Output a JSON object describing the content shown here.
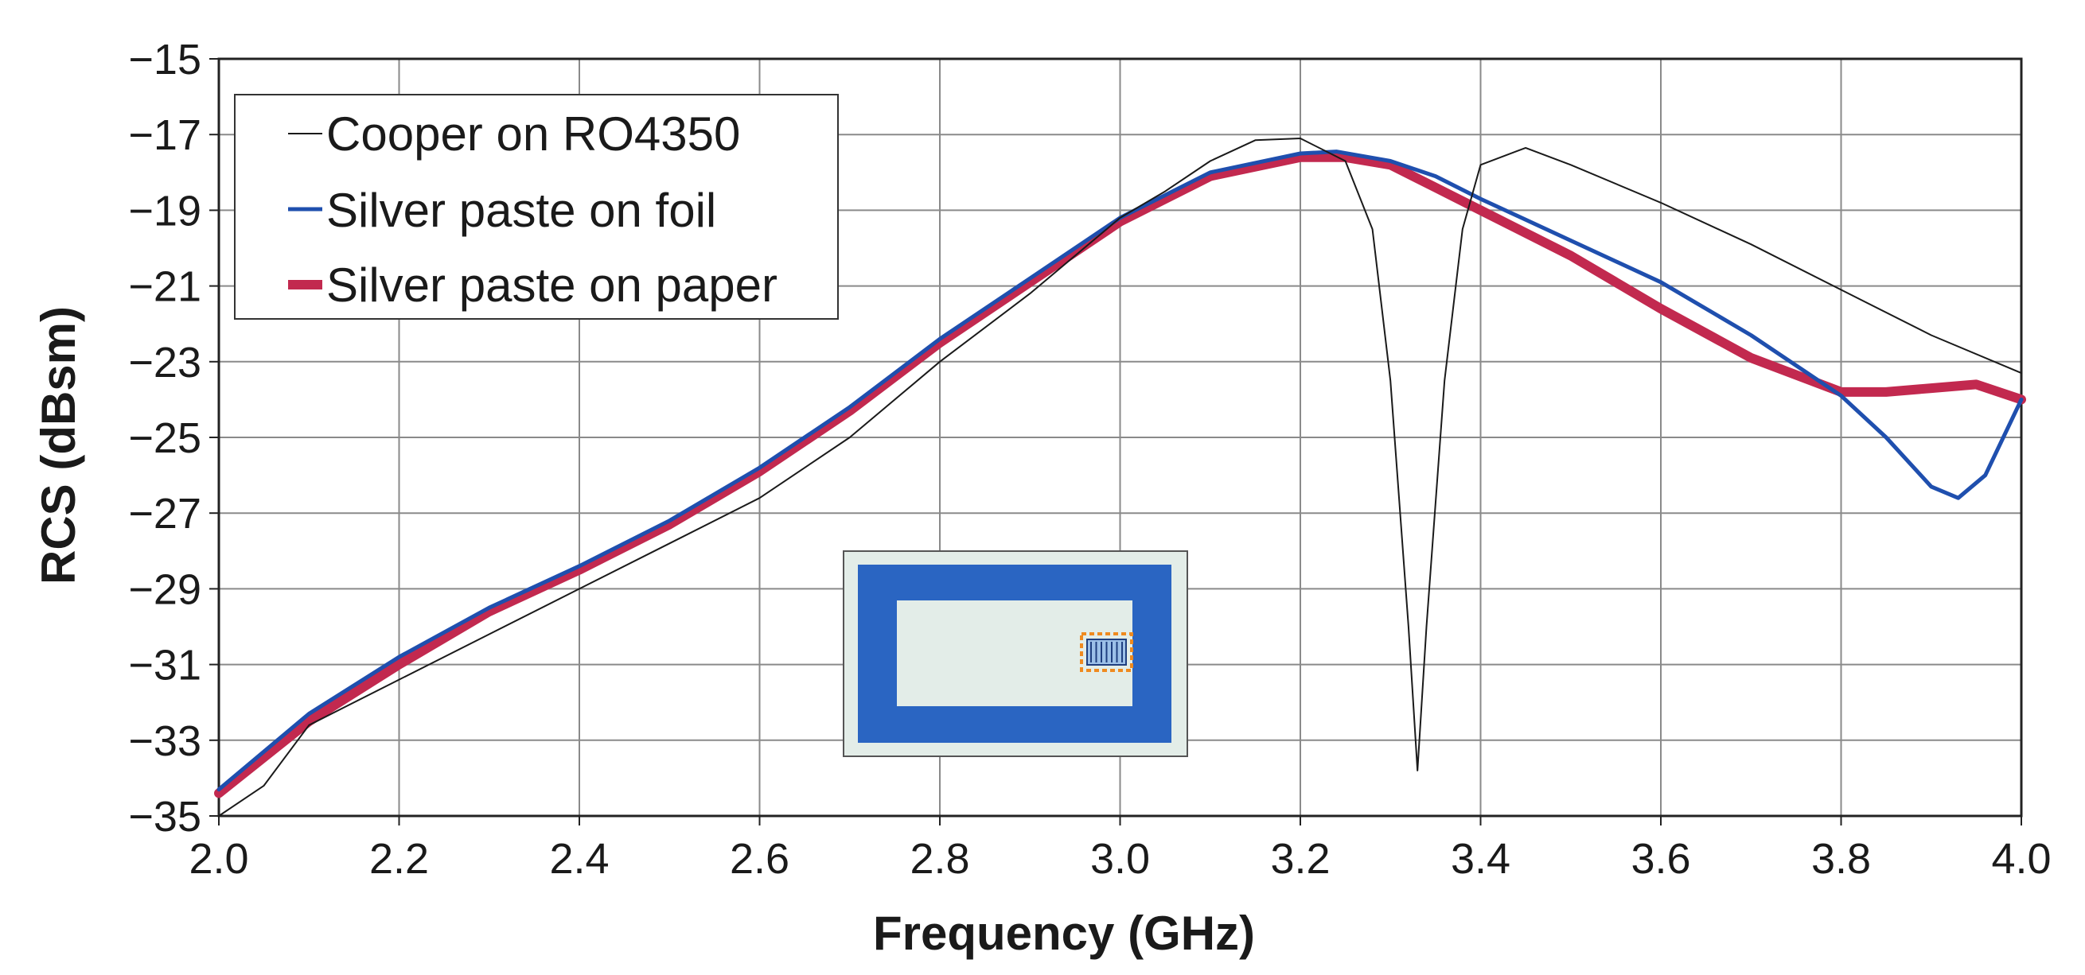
{
  "chart_data": {
    "type": "line",
    "xlabel": "Frequency (GHz)",
    "ylabel": "RCS (dBsm)",
    "xlim": [
      2.0,
      4.0
    ],
    "ylim": [
      -35,
      -15
    ],
    "x_ticks": [
      "2.0",
      "2.2",
      "2.4",
      "2.6",
      "2.8",
      "3.0",
      "3.2",
      "3.4",
      "3.6",
      "3.8",
      "4.0"
    ],
    "y_ticks": [
      "−15",
      "−17",
      "−19",
      "−21",
      "−23",
      "−25",
      "−27",
      "−29",
      "−31",
      "−33",
      "−35"
    ],
    "grid": true,
    "legend_position": "top-left",
    "series": [
      {
        "name": "Cooper on RO4350",
        "color": "#1a1a1a",
        "points": [
          [
            2.0,
            -35.0
          ],
          [
            2.05,
            -34.2
          ],
          [
            2.1,
            -32.6
          ],
          [
            2.2,
            -31.4
          ],
          [
            2.3,
            -30.2
          ],
          [
            2.4,
            -29.0
          ],
          [
            2.5,
            -27.8
          ],
          [
            2.6,
            -26.6
          ],
          [
            2.7,
            -25.0
          ],
          [
            2.8,
            -23.0
          ],
          [
            2.9,
            -21.2
          ],
          [
            3.0,
            -19.2
          ],
          [
            3.05,
            -18.5
          ],
          [
            3.1,
            -17.7
          ],
          [
            3.15,
            -17.15
          ],
          [
            3.2,
            -17.1
          ],
          [
            3.25,
            -17.7
          ],
          [
            3.28,
            -19.5
          ],
          [
            3.3,
            -23.5
          ],
          [
            3.32,
            -30.0
          ],
          [
            3.33,
            -33.8
          ],
          [
            3.34,
            -30.0
          ],
          [
            3.36,
            -23.5
          ],
          [
            3.38,
            -19.5
          ],
          [
            3.4,
            -17.8
          ],
          [
            3.45,
            -17.35
          ],
          [
            3.5,
            -17.8
          ],
          [
            3.6,
            -18.8
          ],
          [
            3.7,
            -19.9
          ],
          [
            3.8,
            -21.1
          ],
          [
            3.9,
            -22.3
          ],
          [
            4.0,
            -23.3
          ]
        ]
      },
      {
        "name": "Silver paste on foil",
        "color": "#1f4fae",
        "points": [
          [
            2.0,
            -34.3
          ],
          [
            2.1,
            -32.3
          ],
          [
            2.2,
            -30.8
          ],
          [
            2.3,
            -29.5
          ],
          [
            2.4,
            -28.4
          ],
          [
            2.5,
            -27.2
          ],
          [
            2.6,
            -25.8
          ],
          [
            2.7,
            -24.2
          ],
          [
            2.8,
            -22.4
          ],
          [
            2.9,
            -20.8
          ],
          [
            3.0,
            -19.2
          ],
          [
            3.1,
            -18.0
          ],
          [
            3.2,
            -17.5
          ],
          [
            3.24,
            -17.45
          ],
          [
            3.3,
            -17.7
          ],
          [
            3.35,
            -18.1
          ],
          [
            3.4,
            -18.7
          ],
          [
            3.5,
            -19.8
          ],
          [
            3.6,
            -20.9
          ],
          [
            3.7,
            -22.3
          ],
          [
            3.8,
            -23.9
          ],
          [
            3.85,
            -25.0
          ],
          [
            3.9,
            -26.3
          ],
          [
            3.93,
            -26.6
          ],
          [
            3.96,
            -26.0
          ],
          [
            4.0,
            -24.0
          ]
        ]
      },
      {
        "name": "Silver paste on paper",
        "color": "#c2294f",
        "points": [
          [
            2.0,
            -34.4
          ],
          [
            2.1,
            -32.5
          ],
          [
            2.2,
            -31.0
          ],
          [
            2.3,
            -29.6
          ],
          [
            2.4,
            -28.5
          ],
          [
            2.5,
            -27.3
          ],
          [
            2.6,
            -25.9
          ],
          [
            2.7,
            -24.3
          ],
          [
            2.8,
            -22.5
          ],
          [
            2.9,
            -20.9
          ],
          [
            3.0,
            -19.3
          ],
          [
            3.1,
            -18.1
          ],
          [
            3.2,
            -17.6
          ],
          [
            3.25,
            -17.6
          ],
          [
            3.3,
            -17.8
          ],
          [
            3.35,
            -18.4
          ],
          [
            3.4,
            -19.0
          ],
          [
            3.5,
            -20.2
          ],
          [
            3.6,
            -21.6
          ],
          [
            3.7,
            -22.9
          ],
          [
            3.8,
            -23.8
          ],
          [
            3.85,
            -23.8
          ],
          [
            3.9,
            -23.7
          ],
          [
            3.95,
            -23.6
          ],
          [
            4.0,
            -24.0
          ]
        ]
      }
    ]
  },
  "inset": {
    "frame_color": "#e3ede8",
    "ring_color": "#2a65c2",
    "chip_color": "#ef8a1f"
  }
}
